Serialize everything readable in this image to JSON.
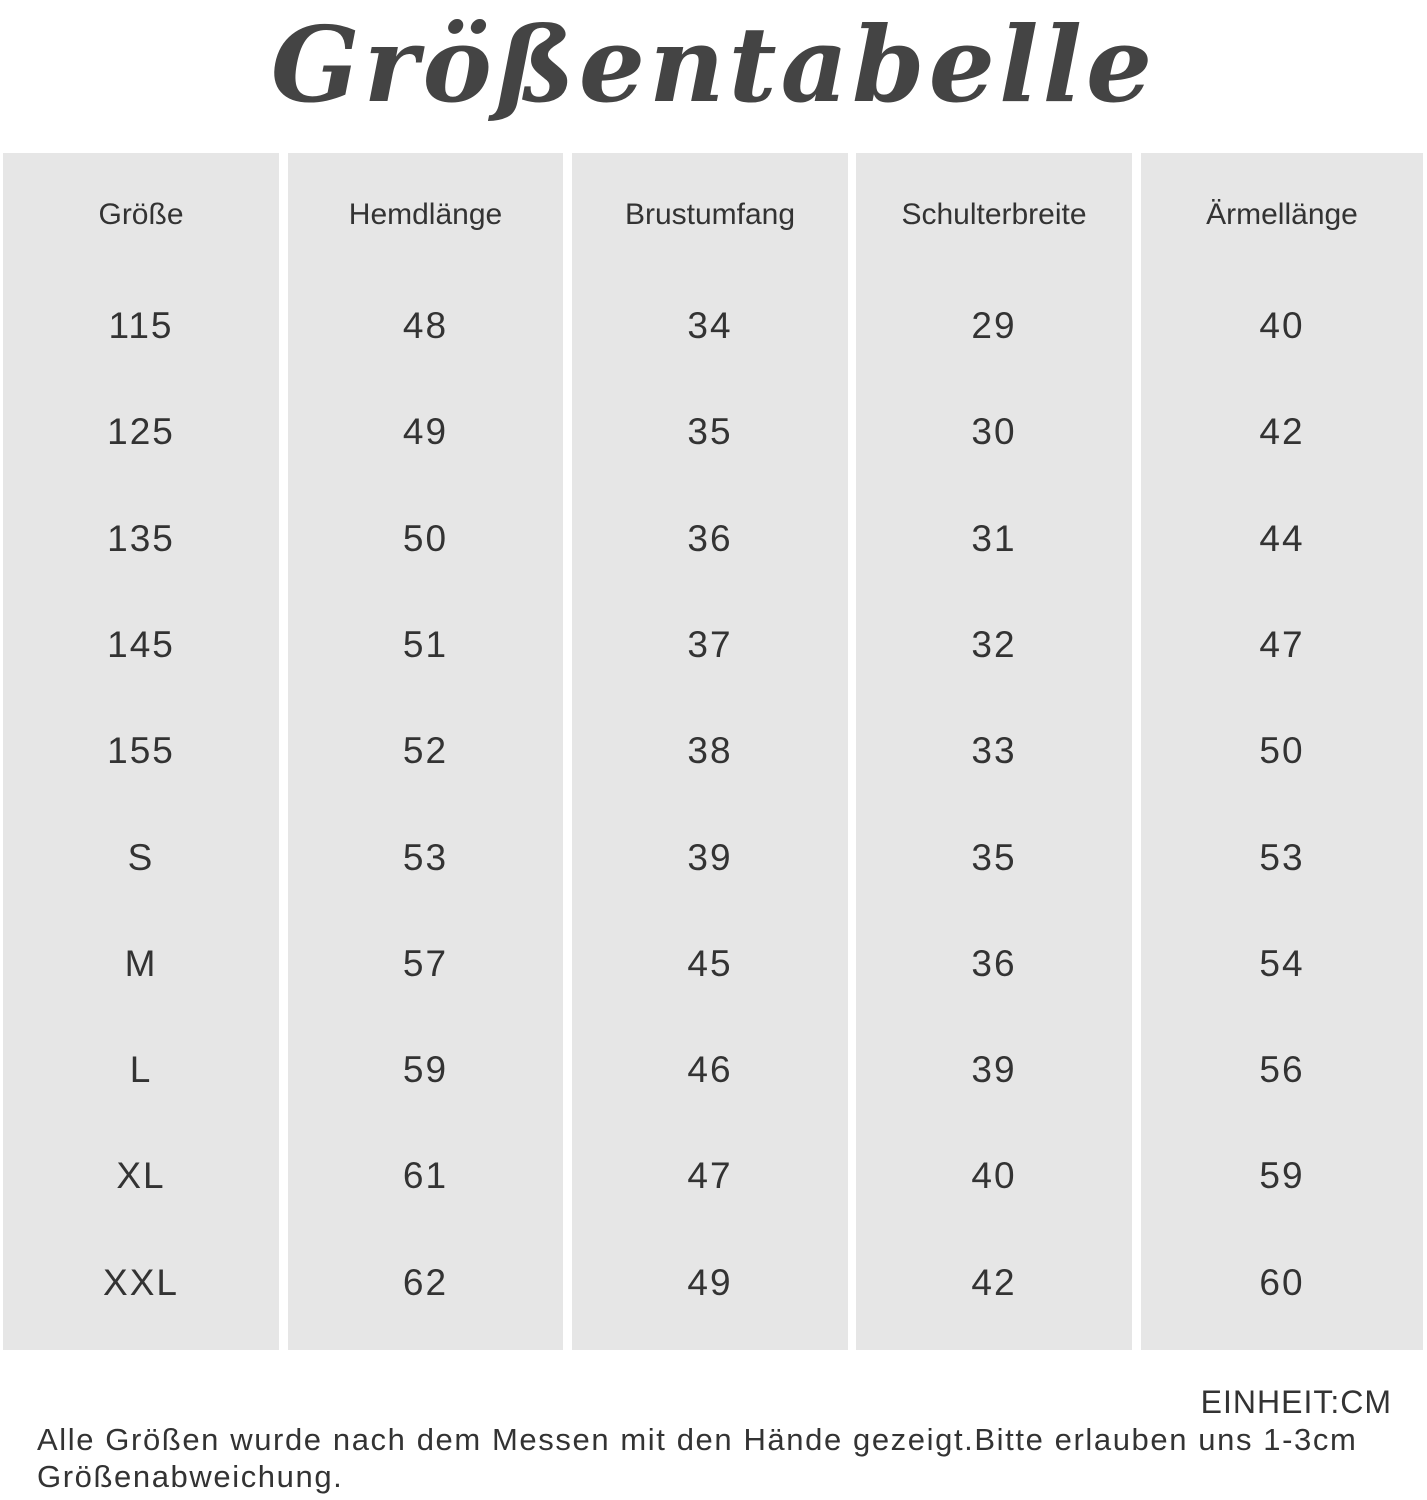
{
  "title": "Größentabelle",
  "columns": [
    {
      "header": "Größe",
      "values": [
        "115",
        "125",
        "135",
        "145",
        "155",
        "S",
        "M",
        "L",
        "XL",
        "XXL"
      ]
    },
    {
      "header": "Hemdlänge",
      "values": [
        "48",
        "49",
        "50",
        "51",
        "52",
        "53",
        "57",
        "59",
        "61",
        "62"
      ]
    },
    {
      "header": "Brustumfang",
      "values": [
        "34",
        "35",
        "36",
        "37",
        "38",
        "39",
        "45",
        "46",
        "47",
        "49"
      ]
    },
    {
      "header": "Schulterbreite",
      "values": [
        "29",
        "30",
        "31",
        "32",
        "33",
        "35",
        "36",
        "39",
        "40",
        "42"
      ]
    },
    {
      "header": "Ärmellänge",
      "values": [
        "40",
        "42",
        "44",
        "47",
        "50",
        "53",
        "54",
        "56",
        "59",
        "60"
      ]
    }
  ],
  "unit": "EINHEIT:CM",
  "note": "Alle Größen wurde nach dem Messen mit den Hände gezeigt.Bitte erlauben uns 1-3cm Größenabweichung."
}
